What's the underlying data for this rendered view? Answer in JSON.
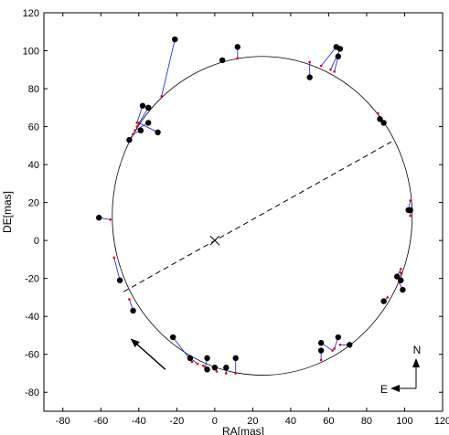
{
  "chart_data": {
    "type": "scatter",
    "xlabel": "RA[mas]",
    "ylabel": "DE[mas]",
    "xlim": [
      -90,
      120
    ],
    "ylim": [
      -90,
      120
    ],
    "xticks": [
      -80,
      -60,
      -40,
      -20,
      0,
      20,
      40,
      60,
      80,
      100,
      120
    ],
    "yticks": [
      -80,
      -60,
      -40,
      -20,
      0,
      20,
      40,
      60,
      80,
      100,
      120
    ],
    "grid": false,
    "fitted_orbit": {
      "center": [
        25,
        13
      ],
      "semi_major_x": 79,
      "semi_minor_y": 84,
      "style": "thin black line"
    },
    "focus_marker": {
      "x": 0,
      "y": 0,
      "symbol": "x"
    },
    "line_of_apsides": {
      "from": [
        -48,
        -27
      ],
      "to": [
        93,
        52
      ],
      "style": "dashed"
    },
    "motion_arrow": {
      "from": [
        -26,
        -68
      ],
      "to": [
        -44,
        -52
      ]
    },
    "compass": {
      "north_label": "N",
      "east_label": "E"
    },
    "observations": [
      {
        "x": -21,
        "y": 106,
        "fit_x": -28,
        "fit_y": 76
      },
      {
        "x": -38,
        "y": 71,
        "fit_x": -41,
        "fit_y": 62
      },
      {
        "x": -35,
        "y": 70,
        "fit_x": -41,
        "fit_y": 60
      },
      {
        "x": -35,
        "y": 62,
        "fit_x": -42,
        "fit_y": 58
      },
      {
        "x": -30,
        "y": 57,
        "fit_x": -40,
        "fit_y": 62
      },
      {
        "x": -39,
        "y": 58,
        "fit_x": -43,
        "fit_y": 56
      },
      {
        "x": -45,
        "y": 53,
        "fit_x": -43,
        "fit_y": 56
      },
      {
        "x": 4,
        "y": 95,
        "fit_x": 4,
        "fit_y": 95
      },
      {
        "x": 12,
        "y": 102,
        "fit_x": 12,
        "fit_y": 96
      },
      {
        "x": 50,
        "y": 86,
        "fit_x": 50,
        "fit_y": 94
      },
      {
        "x": 64,
        "y": 102,
        "fit_x": 56,
        "fit_y": 92
      },
      {
        "x": 66,
        "y": 101,
        "fit_x": 61,
        "fit_y": 90
      },
      {
        "x": 65,
        "y": 97,
        "fit_x": 63,
        "fit_y": 89
      },
      {
        "x": 87,
        "y": 64,
        "fit_x": 86,
        "fit_y": 67
      },
      {
        "x": 89,
        "y": 62,
        "fit_x": 87,
        "fit_y": 65
      },
      {
        "x": 102,
        "y": 16,
        "fit_x": 103,
        "fit_y": 21
      },
      {
        "x": 103,
        "y": 16,
        "fit_x": 103,
        "fit_y": 13
      },
      {
        "x": 96,
        "y": -19,
        "fit_x": 98,
        "fit_y": -15
      },
      {
        "x": 98,
        "y": -21,
        "fit_x": 98,
        "fit_y": -17
      },
      {
        "x": 99,
        "y": -26,
        "fit_x": 97,
        "fit_y": -22
      },
      {
        "x": 89,
        "y": -32,
        "fit_x": 91,
        "fit_y": -30
      },
      {
        "x": 71,
        "y": -55,
        "fit_x": 66,
        "fit_y": -55
      },
      {
        "x": 65,
        "y": -51,
        "fit_x": 63,
        "fit_y": -57
      },
      {
        "x": 56,
        "y": -54,
        "fit_x": 62,
        "fit_y": -58
      },
      {
        "x": 56,
        "y": -58,
        "fit_x": 56,
        "fit_y": -63
      },
      {
        "x": 11,
        "y": -62,
        "fit_x": 11,
        "fit_y": -70
      },
      {
        "x": 6,
        "y": -67,
        "fit_x": 6,
        "fit_y": -70
      },
      {
        "x": 0,
        "y": -67,
        "fit_x": 1,
        "fit_y": -69
      },
      {
        "x": -4,
        "y": -62,
        "fit_x": -5,
        "fit_y": -67
      },
      {
        "x": -4,
        "y": -68,
        "fit_x": -6,
        "fit_y": -66
      },
      {
        "x": -13,
        "y": -62,
        "fit_x": -9,
        "fit_y": -65
      },
      {
        "x": -22,
        "y": -51,
        "fit_x": -12,
        "fit_y": -64
      },
      {
        "x": -43,
        "y": -37,
        "fit_x": -45,
        "fit_y": -31
      },
      {
        "x": -50,
        "y": -21,
        "fit_x": -53,
        "fit_y": -9
      },
      {
        "x": -61,
        "y": 12,
        "fit_x": -55,
        "fit_y": 11
      }
    ]
  }
}
